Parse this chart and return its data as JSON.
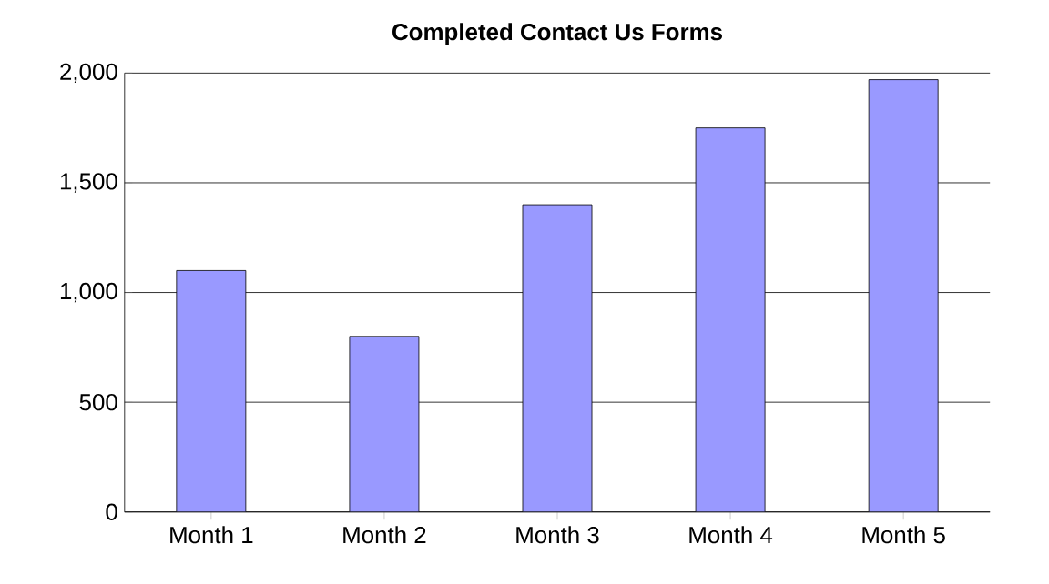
{
  "chart_data": {
    "type": "bar",
    "title": "Completed Contact Us Forms",
    "categories": [
      "Month 1",
      "Month 2",
      "Month 3",
      "Month 4",
      "Month 5"
    ],
    "values": [
      1100,
      800,
      1400,
      1750,
      1970
    ],
    "color": "#9999ff",
    "ylim": [
      0,
      2000
    ],
    "yticks": [
      {
        "value": 0,
        "label": "0"
      },
      {
        "value": 500,
        "label": "500"
      },
      {
        "value": 1000,
        "label": "1,000"
      },
      {
        "value": 1500,
        "label": "1,500"
      },
      {
        "value": 2000,
        "label": "2,000"
      }
    ],
    "grid": "y"
  }
}
